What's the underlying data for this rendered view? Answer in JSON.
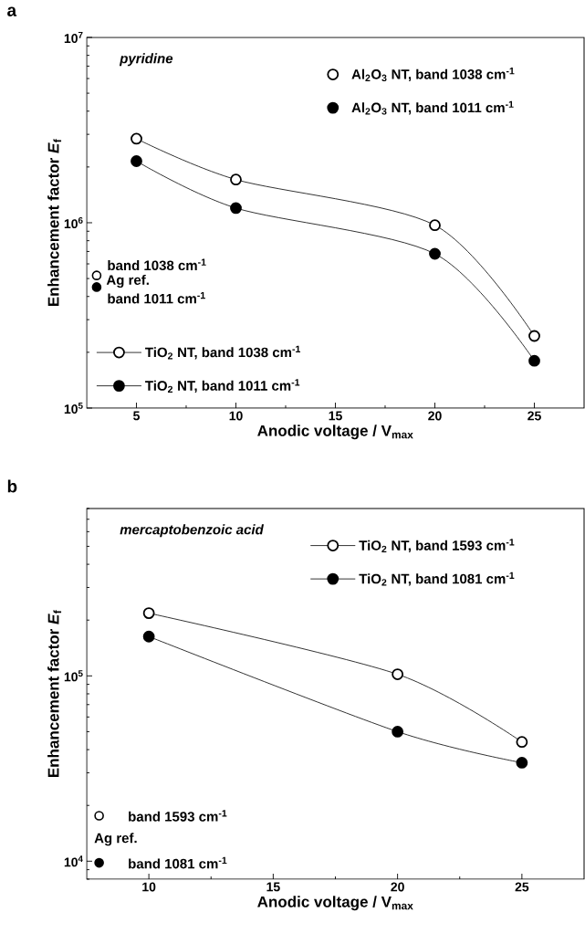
{
  "chart_data": [
    {
      "type": "line",
      "title": "a",
      "xlabel": "Anodic voltage / V$_{max}$",
      "ylabel": "Enhancement factor *E*$_{f}$",
      "xlim": [
        2.5,
        27.5
      ],
      "xticks": [
        5,
        10,
        15,
        20,
        25
      ],
      "ylim": [
        100000,
        10000000
      ],
      "yticks": [
        {
          "value": 100000,
          "label": "10$^{5}$"
        },
        {
          "value": 1000000,
          "label": "10$^{6}$"
        },
        {
          "value": 10000000,
          "label": "10$^{7}$"
        }
      ],
      "log": "y",
      "legend": "bottom left",
      "annotations": [
        "pyridine",
        "band 1038 cm$^{-1}$",
        "Ag ref.",
        "band 1011 cm$^{-1}$"
      ],
      "series": [
        {
          "name": "TiO$_{2}$ NT, band 1038 cm$^{-1}$",
          "marker": "open circle",
          "color": "#000000",
          "x": [
            5,
            10,
            20,
            25
          ],
          "values": [
            2840000,
            1710000,
            970000,
            245000
          ]
        },
        {
          "name": "TiO$_{2}$ NT, band 1011 cm$^{-1}$",
          "marker": "circle",
          "color": "#000000",
          "x": [
            5,
            10,
            20,
            25
          ],
          "values": [
            2150000,
            1200000,
            680000,
            180000
          ]
        },
        {
          "name": "Al$_{2}$O$_{3}$ NT, band 1038 cm$^{-1}$",
          "type": "scatter",
          "marker": "open circle",
          "color": "#000000"
        },
        {
          "name": "Al$_{2}$O$_{3}$ NT, band 1011 cm$^{-1}$",
          "type": "scatter",
          "marker": "circle",
          "color": "#000000"
        },
        {
          "type": "scatter",
          "marker": "open circle",
          "color": "#000000",
          "x": [
            3
          ],
          "values": [
            520000
          ]
        },
        {
          "type": "scatter",
          "marker": "circle",
          "color": "#000000",
          "x": [
            3
          ],
          "values": [
            450000
          ]
        }
      ]
    },
    {
      "type": "line",
      "title": "b",
      "xlabel": "Anodic voltage / V$_{max}$",
      "ylabel": "Enhancement factor *E*$_{f}$",
      "xlim": [
        7.5,
        27.5
      ],
      "xticks": [
        10,
        15,
        20,
        25
      ],
      "ylim": [
        8000,
        800000
      ],
      "yticks": [
        {
          "value": 10000,
          "label": "10$^{4}$"
        },
        {
          "value": 100000,
          "label": "10$^{5}$"
        }
      ],
      "log": "y",
      "legend": "top right",
      "annotations": [
        "mercaptobenzoic acid",
        "band 1593 cm$^{-1}$",
        "Ag ref.",
        "band 1081 cm$^{-1}$"
      ],
      "series": [
        {
          "name": "TiO$_{2}$ NT, band 1593 cm$^{-1}$",
          "marker": "open circle",
          "color": "#000000",
          "x": [
            10,
            20,
            25
          ],
          "values": [
            218000,
            102000,
            44000
          ]
        },
        {
          "name": "TiO$_{2}$ NT, band 1081 cm$^{-1}$",
          "marker": "circle",
          "color": "#000000",
          "x": [
            10,
            20,
            25
          ],
          "values": [
            163000,
            50000,
            34000
          ]
        },
        {
          "type": "scatter",
          "marker": "open circle",
          "color": "#000000",
          "x": [
            8
          ],
          "values": [
            17600
          ]
        },
        {
          "type": "scatter",
          "marker": "circle",
          "color": "#000000",
          "x": [
            8
          ],
          "values": [
            9800
          ]
        }
      ]
    }
  ]
}
